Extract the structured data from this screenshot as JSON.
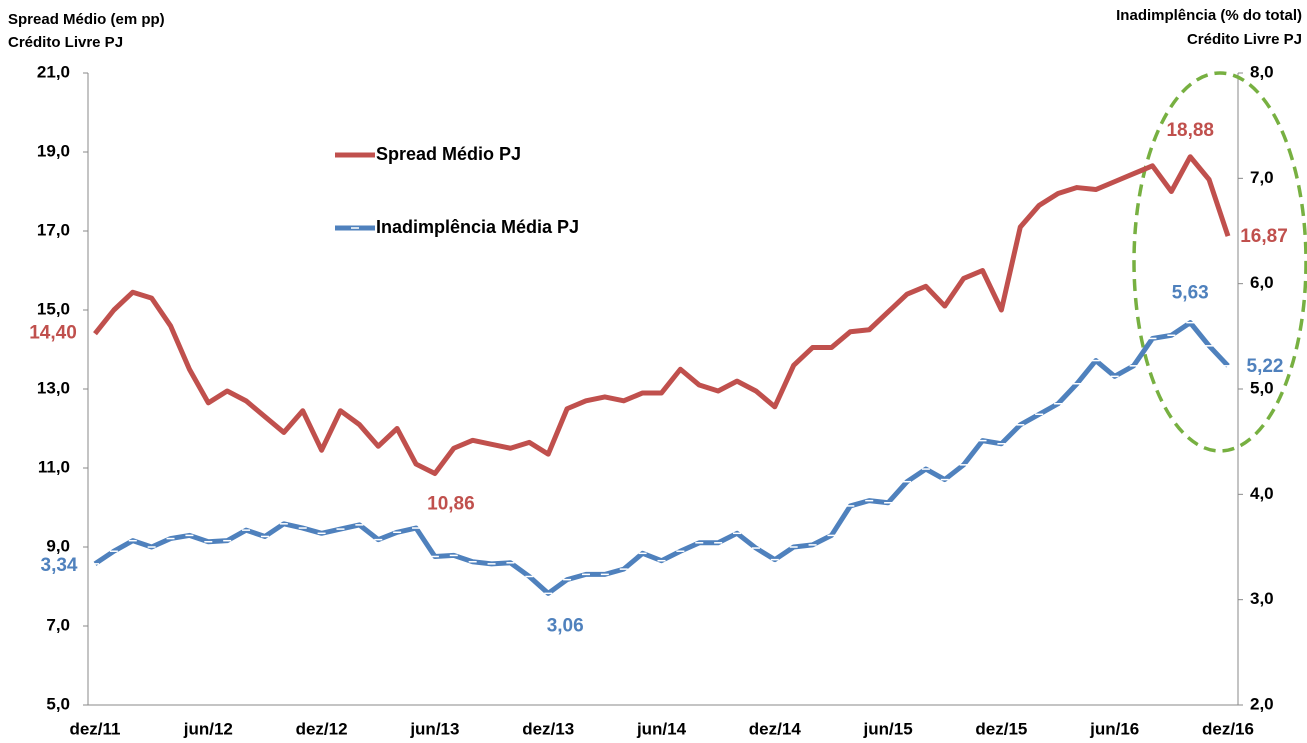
{
  "chart_data": {
    "type": "line",
    "y_label": [
      "Spread Médio (em pp)",
      "Crédito Livre PJ"
    ],
    "y2_label": [
      "Inadimplência (% do total)",
      "Crédito Livre PJ"
    ],
    "categories": [
      "dez/11",
      null,
      null,
      null,
      null,
      null,
      "jun/12",
      null,
      null,
      null,
      null,
      null,
      "dez/12",
      null,
      null,
      null,
      null,
      null,
      "jun/13",
      null,
      null,
      null,
      null,
      null,
      "dez/13",
      null,
      null,
      null,
      null,
      null,
      "jun/14",
      null,
      null,
      null,
      null,
      null,
      "dez/14",
      null,
      null,
      null,
      null,
      null,
      "jun/15",
      null,
      null,
      null,
      null,
      null,
      "dez/15",
      null,
      null,
      null,
      null,
      null,
      "jun/16",
      null,
      null,
      null,
      null,
      null,
      "dez/16"
    ],
    "series": [
      {
        "name": "Spread Médio PJ",
        "color": "#c0504d",
        "values": [
          14.4,
          15.0,
          15.45,
          15.3,
          14.6,
          13.5,
          12.65,
          12.95,
          12.7,
          12.3,
          11.9,
          12.45,
          11.45,
          12.45,
          12.1,
          11.55,
          12.0,
          11.1,
          10.86,
          11.5,
          11.7,
          11.6,
          11.5,
          11.65,
          11.35,
          12.5,
          12.7,
          12.8,
          12.7,
          12.9,
          12.9,
          13.5,
          13.1,
          12.95,
          13.2,
          12.95,
          12.55,
          13.6,
          14.05,
          14.05,
          14.45,
          14.5,
          14.95,
          15.4,
          15.6,
          15.1,
          15.8,
          16.0,
          15.0,
          17.1,
          17.65,
          17.95,
          18.1,
          18.05,
          18.25,
          18.45,
          18.65,
          18.0,
          18.88,
          18.3,
          16.87
        ],
        "value_labels": [
          "14,40",
          null,
          null,
          null,
          null,
          null,
          null,
          null,
          null,
          null,
          null,
          null,
          null,
          null,
          null,
          null,
          null,
          null,
          "10,86",
          null,
          null,
          null,
          null,
          null,
          null,
          null,
          null,
          null,
          null,
          null,
          null,
          null,
          null,
          null,
          null,
          null,
          null,
          null,
          null,
          null,
          null,
          null,
          null,
          null,
          null,
          null,
          null,
          null,
          null,
          null,
          null,
          null,
          null,
          null,
          null,
          null,
          null,
          null,
          "18,88",
          null,
          "16,87"
        ]
      },
      {
        "name": "Inadimplência Média PJ",
        "color": "#4f81bd",
        "axis": "y2",
        "values": [
          3.34,
          3.46,
          3.56,
          3.5,
          3.58,
          3.61,
          3.55,
          3.56,
          3.66,
          3.6,
          3.72,
          3.68,
          3.63,
          3.67,
          3.71,
          3.57,
          3.64,
          3.68,
          3.41,
          3.42,
          3.36,
          3.34,
          3.35,
          3.22,
          3.06,
          3.19,
          3.24,
          3.24,
          3.29,
          3.44,
          3.37,
          3.46,
          3.54,
          3.54,
          3.63,
          3.49,
          3.38,
          3.5,
          3.52,
          3.61,
          3.89,
          3.94,
          3.92,
          4.12,
          4.24,
          4.14,
          4.28,
          4.51,
          4.48,
          4.66,
          4.76,
          4.86,
          5.05,
          5.27,
          5.12,
          5.22,
          5.48,
          5.51,
          5.63,
          5.41,
          5.22
        ],
        "value_labels": [
          "3,34",
          null,
          null,
          null,
          null,
          null,
          null,
          null,
          null,
          null,
          null,
          null,
          null,
          null,
          null,
          null,
          null,
          null,
          null,
          null,
          null,
          null,
          null,
          null,
          "3,06",
          null,
          null,
          null,
          null,
          null,
          null,
          null,
          null,
          null,
          null,
          null,
          null,
          null,
          null,
          null,
          null,
          null,
          null,
          null,
          null,
          null,
          null,
          null,
          null,
          null,
          null,
          null,
          null,
          null,
          null,
          null,
          null,
          null,
          "5,63",
          null,
          "5,22"
        ]
      }
    ],
    "ylim": [
      5,
      21
    ],
    "yticks": [
      {
        "value": 5,
        "label": "5,0"
      },
      {
        "value": 7,
        "label": "7,0"
      },
      {
        "value": 9,
        "label": "9,0"
      },
      {
        "value": 11,
        "label": "11,0"
      },
      {
        "value": 13,
        "label": "13,0"
      },
      {
        "value": 15,
        "label": "15,0"
      },
      {
        "value": 17,
        "label": "17,0"
      },
      {
        "value": 19,
        "label": "19,0"
      },
      {
        "value": 21,
        "label": "21,0"
      }
    ],
    "y2lim": [
      2,
      8
    ],
    "y2ticks": [
      {
        "value": 2,
        "label": "2,0"
      },
      {
        "value": 3,
        "label": "3,0"
      },
      {
        "value": 4,
        "label": "4,0"
      },
      {
        "value": 5,
        "label": "5,0"
      },
      {
        "value": 6,
        "label": "6,0"
      },
      {
        "value": 7,
        "label": "7,0"
      },
      {
        "value": 8,
        "label": "8,0"
      }
    ],
    "grid": false
  }
}
